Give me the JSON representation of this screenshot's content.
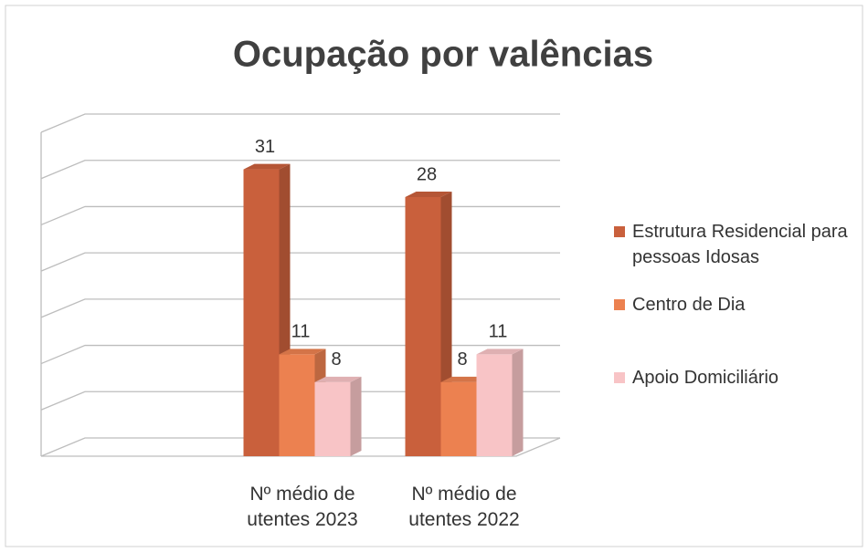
{
  "chart_data": {
    "type": "bar3d",
    "title": "Ocupação por valências",
    "categories": [
      "Nº médio de utentes 2023",
      "Nº médio de utentes 2022"
    ],
    "series": [
      {
        "name": "Estrutura Residencial para pessoas Idosas",
        "color": "#c9603c",
        "values": [
          31,
          28
        ]
      },
      {
        "name": "Centro de Dia",
        "color": "#ec8150",
        "values": [
          11,
          8
        ]
      },
      {
        "name": "Apoio Domiciliário",
        "color": "#f8c4c6",
        "values": [
          8,
          11
        ]
      }
    ],
    "ylim": [
      0,
      35
    ],
    "yticks": [
      0,
      5,
      10,
      15,
      20,
      25,
      30,
      35
    ],
    "grid": true,
    "legend": "right"
  }
}
